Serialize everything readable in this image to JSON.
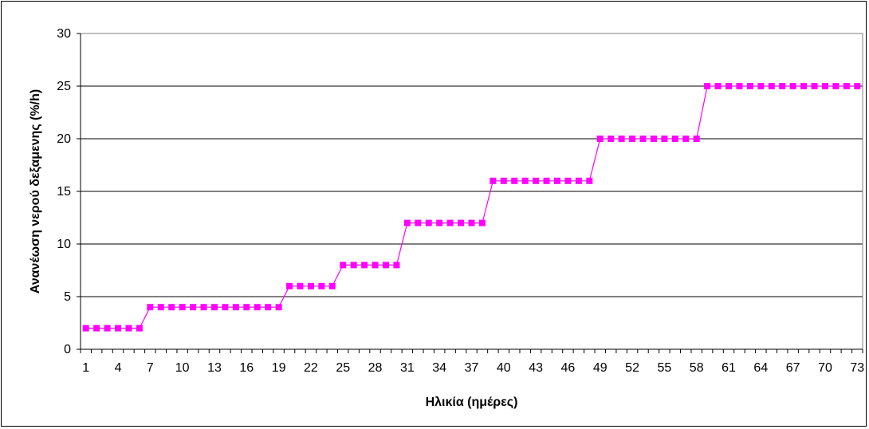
{
  "chart_data": {
    "type": "line",
    "title": "",
    "xlabel": "Ηλικία (ημέρες)",
    "ylabel": "Ανανέωση νερού δεξαμενης (%/h)",
    "ylim": [
      0,
      30
    ],
    "yticks": [
      0,
      5,
      10,
      15,
      20,
      25,
      30
    ],
    "grid": true,
    "legend": "none",
    "x": [
      1,
      2,
      3,
      4,
      5,
      6,
      7,
      8,
      9,
      10,
      11,
      12,
      13,
      14,
      15,
      16,
      17,
      18,
      19,
      20,
      21,
      22,
      23,
      24,
      25,
      26,
      27,
      28,
      29,
      30,
      31,
      32,
      33,
      34,
      35,
      36,
      37,
      38,
      39,
      40,
      41,
      42,
      43,
      44,
      45,
      46,
      47,
      48,
      49,
      50,
      51,
      52,
      53,
      54,
      55,
      56,
      57,
      58,
      59,
      60,
      61,
      62,
      63,
      64,
      65,
      66,
      67,
      68,
      69,
      70,
      71,
      72,
      73
    ],
    "xtick_labels": [
      "1",
      "4",
      "7",
      "10",
      "13",
      "16",
      "19",
      "22",
      "25",
      "28",
      "31",
      "34",
      "37",
      "40",
      "43",
      "46",
      "49",
      "52",
      "55",
      "58",
      "61",
      "64",
      "67",
      "70",
      "73"
    ],
    "series": [
      {
        "color": "#ff00ff",
        "marker": "square",
        "values": [
          2,
          2,
          2,
          2,
          2,
          2,
          4,
          4,
          4,
          4,
          4,
          4,
          4,
          4,
          4,
          4,
          4,
          4,
          4,
          6,
          6,
          6,
          6,
          6,
          8,
          8,
          8,
          8,
          8,
          8,
          12,
          12,
          12,
          12,
          12,
          12,
          12,
          12,
          16,
          16,
          16,
          16,
          16,
          16,
          16,
          16,
          16,
          16,
          20,
          20,
          20,
          20,
          20,
          20,
          20,
          20,
          20,
          20,
          25,
          25,
          25,
          25,
          25,
          25,
          25,
          25,
          25,
          25,
          25,
          25,
          25,
          25,
          25
        ]
      }
    ]
  }
}
